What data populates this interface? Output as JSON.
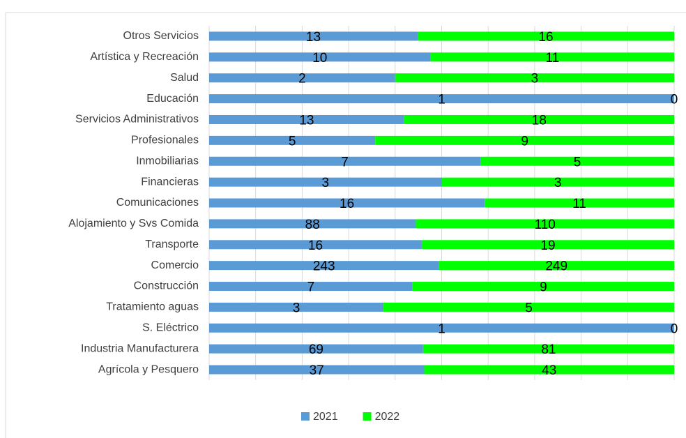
{
  "chart_data": {
    "type": "bar",
    "orientation": "horizontal",
    "stacked": "percent",
    "categories": [
      "Otros Servicios",
      "Artística y Recreación",
      "Salud",
      "Educación",
      "Servicios Administrativos",
      "Profesionales",
      "Inmobiliarias",
      "Financieras",
      "Comunicaciones",
      "Alojamiento y Svs Comida",
      "Transporte",
      "Comercio",
      "Construcción",
      "Tratamiento aguas",
      "S. Eléctrico",
      "Industria Manufacturera",
      "Agrícola y Pesquero"
    ],
    "series": [
      {
        "name": "2021",
        "color": "#5b9bd5",
        "values": [
          13,
          10,
          2,
          1,
          13,
          5,
          7,
          3,
          16,
          88,
          16,
          243,
          7,
          3,
          1,
          69,
          37
        ]
      },
      {
        "name": "2022",
        "color": "#00ff00",
        "values": [
          16,
          11,
          3,
          0,
          18,
          9,
          5,
          3,
          11,
          110,
          19,
          249,
          9,
          5,
          0,
          81,
          43
        ]
      }
    ],
    "xlim": [
      0,
      100
    ],
    "xticks": [
      0,
      10,
      20,
      30,
      40,
      50,
      60,
      70,
      80,
      90,
      100
    ],
    "grid": true,
    "legend": "bottom"
  }
}
